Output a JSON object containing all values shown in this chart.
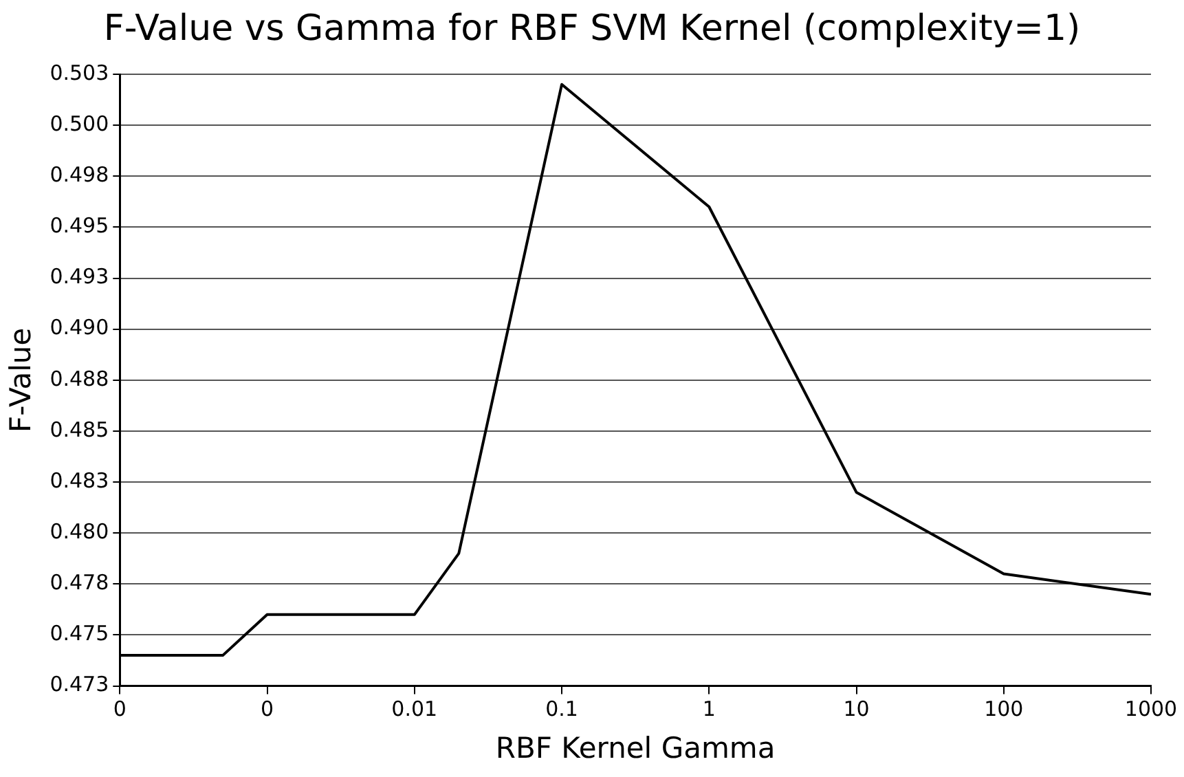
{
  "chart_data": {
    "type": "line",
    "title": "F-Value vs Gamma for RBF SVM Kernel (complexity=1)",
    "xlabel": "RBF Kernel Gamma",
    "ylabel": "F-Value",
    "log": "x",
    "x": [
      0.0001,
      0.0005,
      0.001,
      0.01,
      0.02,
      0.1,
      1,
      10,
      100,
      1000
    ],
    "series": [
      {
        "color": "#000000",
        "values": [
          0.4745,
          0.4745,
          0.4765,
          0.4765,
          0.4795,
          0.5025,
          0.4965,
          0.4825,
          0.4785,
          0.4775
        ]
      }
    ],
    "xlim": [
      0.0001,
      1000
    ],
    "xticks": [
      {
        "value": 0.0001,
        "label": "0"
      },
      {
        "value": 0.001,
        "label": "0"
      },
      0.01,
      0.1,
      1,
      10,
      100,
      1000
    ],
    "ylim": [
      0.473,
      0.503
    ],
    "yticks": [
      0.473,
      {
        "value": 0.4755,
        "label": "0.475"
      },
      0.478,
      {
        "value": 0.4805,
        "label": "0.480"
      },
      0.483,
      {
        "value": 0.4855,
        "label": "0.485"
      },
      0.488,
      {
        "value": 0.4905,
        "label": "0.490"
      },
      0.493,
      {
        "value": 0.4955,
        "label": "0.495"
      },
      0.498,
      {
        "value": 0.5005,
        "label": "0.500"
      },
      0.503
    ],
    "grid": "y",
    "legend": false,
    "marker": "none",
    "line_style": "solid"
  }
}
